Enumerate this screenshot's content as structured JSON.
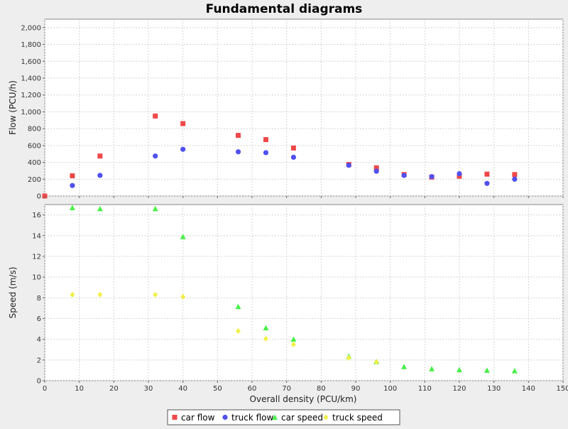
{
  "chart_data": {
    "type": "scatter",
    "title": "Fundamental diagrams",
    "xlabel": "Overall density (PCU/km)",
    "xlim": [
      0,
      150
    ],
    "x_ticks": [
      0,
      10,
      20,
      30,
      40,
      50,
      60,
      70,
      80,
      90,
      100,
      110,
      120,
      130,
      140,
      150
    ],
    "grid": true,
    "legend_position": "bottom-center",
    "plots": [
      {
        "id": "flow",
        "ylabel": "Flow (PCU/h)",
        "ylim": [
          0,
          2100
        ],
        "y_ticks": [
          0,
          200,
          400,
          600,
          800,
          1000,
          1200,
          1400,
          1600,
          1800,
          2000
        ],
        "y_tick_labels": [
          "0",
          "200",
          "400",
          "600",
          "800",
          "1,000",
          "1,200",
          "1,400",
          "1,600",
          "1,800",
          "2,000"
        ],
        "series": [
          {
            "name": "car flow",
            "marker": "square",
            "color": "#f04848",
            "points": [
              [
                0,
                0
              ],
              [
                8,
                240
              ],
              [
                16,
                475
              ],
              [
                32,
                950
              ],
              [
                40,
                860
              ],
              [
                56,
                720
              ],
              [
                64,
                670
              ],
              [
                72,
                570
              ],
              [
                88,
                375
              ],
              [
                96,
                335
              ],
              [
                104,
                255
              ],
              [
                112,
                225
              ],
              [
                120,
                235
              ],
              [
                128,
                260
              ],
              [
                136,
                255
              ]
            ]
          },
          {
            "name": "truck flow",
            "marker": "circle",
            "color": "#5050f0",
            "points": [
              [
                8,
                125
              ],
              [
                16,
                245
              ],
              [
                32,
                475
              ],
              [
                40,
                555
              ],
              [
                56,
                525
              ],
              [
                64,
                515
              ],
              [
                72,
                460
              ],
              [
                88,
                365
              ],
              [
                96,
                295
              ],
              [
                104,
                245
              ],
              [
                112,
                230
              ],
              [
                120,
                265
              ],
              [
                128,
                150
              ],
              [
                136,
                200
              ]
            ]
          }
        ]
      },
      {
        "id": "speed",
        "ylabel": "Speed (m/s)",
        "ylim": [
          0,
          17
        ],
        "y_ticks": [
          0,
          2,
          4,
          6,
          8,
          10,
          12,
          14,
          16
        ],
        "y_tick_labels": [
          "0",
          "2",
          "4",
          "6",
          "8",
          "10",
          "12",
          "14",
          "16"
        ],
        "series": [
          {
            "name": "car speed",
            "marker": "triangle",
            "color": "#48f048",
            "points": [
              [
                8,
                16.7
              ],
              [
                16,
                16.6
              ],
              [
                32,
                16.6
              ],
              [
                40,
                13.9
              ],
              [
                56,
                7.15
              ],
              [
                64,
                5.1
              ],
              [
                72,
                4.0
              ],
              [
                88,
                2.35
              ],
              [
                96,
                1.85
              ],
              [
                104,
                1.35
              ],
              [
                112,
                1.15
              ],
              [
                120,
                1.05
              ],
              [
                128,
                1.0
              ],
              [
                136,
                0.95
              ]
            ]
          },
          {
            "name": "truck speed",
            "marker": "diamond",
            "color": "#f0f048",
            "points": [
              [
                8,
                8.3
              ],
              [
                16,
                8.3
              ],
              [
                32,
                8.3
              ],
              [
                40,
                8.1
              ],
              [
                56,
                4.8
              ],
              [
                64,
                4.05
              ],
              [
                72,
                3.5
              ],
              [
                88,
                2.2
              ],
              [
                96,
                1.8
              ]
            ]
          }
        ]
      }
    ]
  }
}
